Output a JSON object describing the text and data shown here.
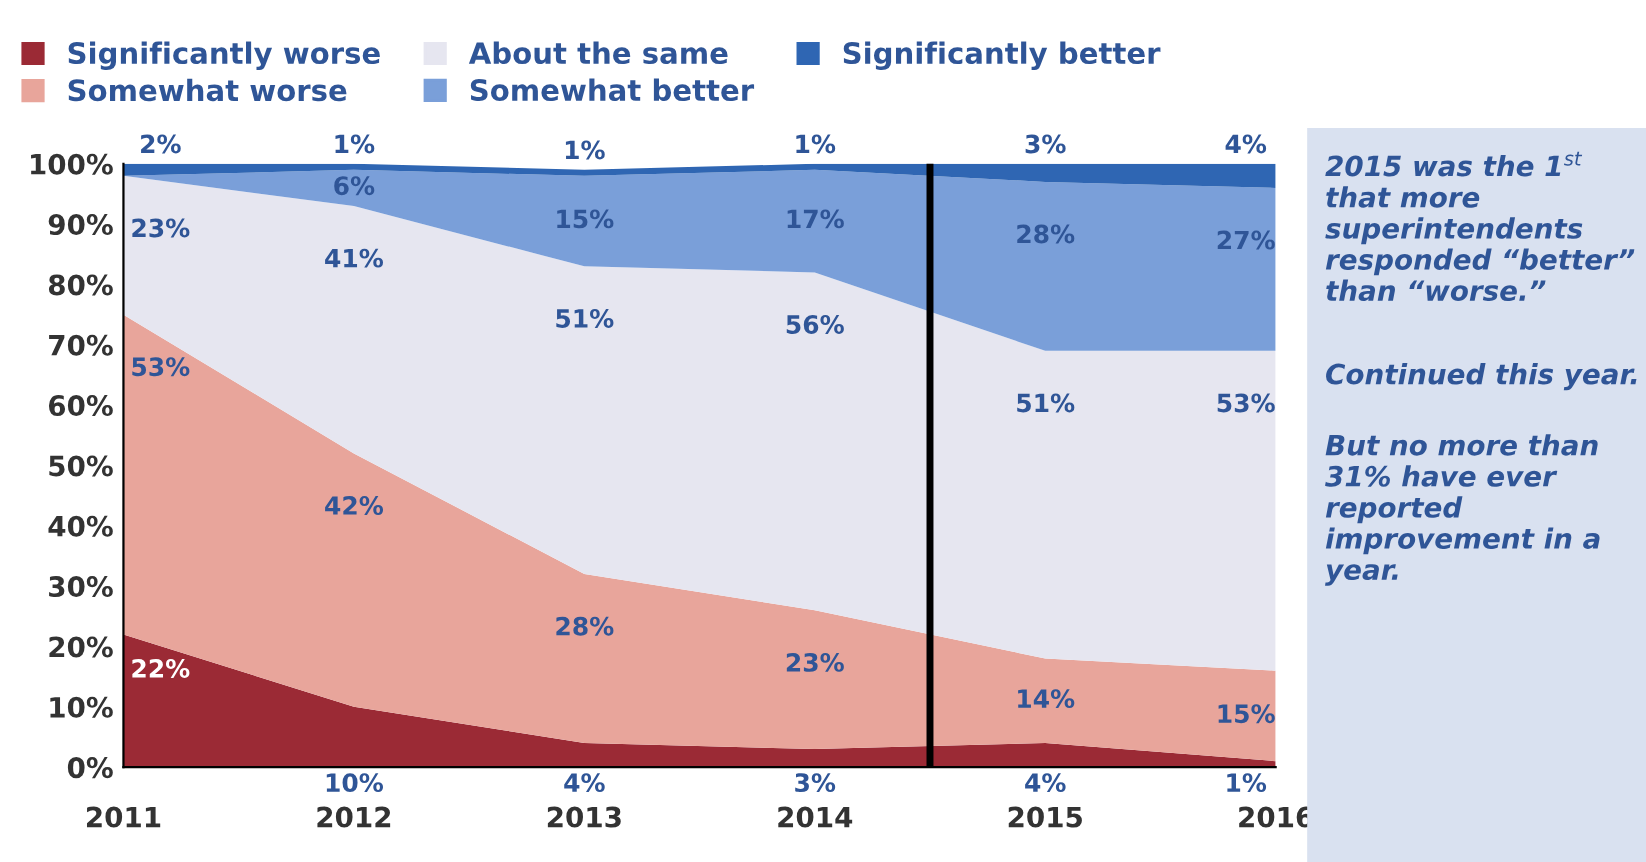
{
  "chart_data": {
    "type": "area",
    "stacked": true,
    "x": [
      2011,
      2012,
      2013,
      2014,
      2015,
      2016
    ],
    "xlim": [
      2011,
      2016
    ],
    "xticks": [
      2011,
      2012,
      2013,
      2014,
      2015,
      2016
    ],
    "ylim": [
      0,
      100
    ],
    "yticks": [
      {
        "value": 0,
        "label": "0%"
      },
      {
        "value": 10,
        "label": "10%"
      },
      {
        "value": 20,
        "label": "20%"
      },
      {
        "value": 30,
        "label": "30%"
      },
      {
        "value": 40,
        "label": "40%"
      },
      {
        "value": 50,
        "label": "50%"
      },
      {
        "value": 60,
        "label": "60%"
      },
      {
        "value": 70,
        "label": "70%"
      },
      {
        "value": 80,
        "label": "80%"
      },
      {
        "value": 90,
        "label": "90%"
      },
      {
        "value": 100,
        "label": "100%"
      }
    ],
    "series": [
      {
        "name": "Significantly worse",
        "color": "#9b2a35",
        "values": [
          22,
          10,
          4,
          3,
          4,
          1
        ],
        "value_labels": [
          "22%",
          "10%",
          "4%",
          "3%",
          "4%",
          "1%"
        ]
      },
      {
        "name": "Somewhat worse",
        "color": "#e8a59b",
        "values": [
          53,
          42,
          28,
          23,
          14,
          15
        ],
        "value_labels": [
          "53%",
          "42%",
          "28%",
          "23%",
          "14%",
          "15%"
        ]
      },
      {
        "name": "About the same",
        "color": "#e6e6f0",
        "values": [
          23,
          41,
          51,
          56,
          51,
          53
        ],
        "value_labels": [
          "23%",
          "41%",
          "51%",
          "56%",
          "51%",
          "53%"
        ]
      },
      {
        "name": "Somewhat better",
        "color": "#7a9fd9",
        "values": [
          0,
          6,
          15,
          17,
          28,
          27
        ],
        "value_labels": [
          null,
          "6%",
          "15%",
          "17%",
          "28%",
          "27%"
        ]
      },
      {
        "name": "Significantly better",
        "color": "#2f66b3",
        "values": [
          2,
          1,
          1,
          1,
          3,
          4
        ],
        "value_labels": [
          "2%",
          "1%",
          "1%",
          "1%",
          "3%",
          "4%"
        ]
      }
    ],
    "ref_lines": [
      {
        "axis": "x",
        "value": 2014.5,
        "color": "#000000"
      }
    ],
    "annotations": [
      "2015 was the 1$^{st}$ that more superintendents responded “better” than “worse.”",
      "Continued this year.",
      "But no more than 31% have ever reported improvement in a year."
    ],
    "legend": "top",
    "grid": false
  }
}
